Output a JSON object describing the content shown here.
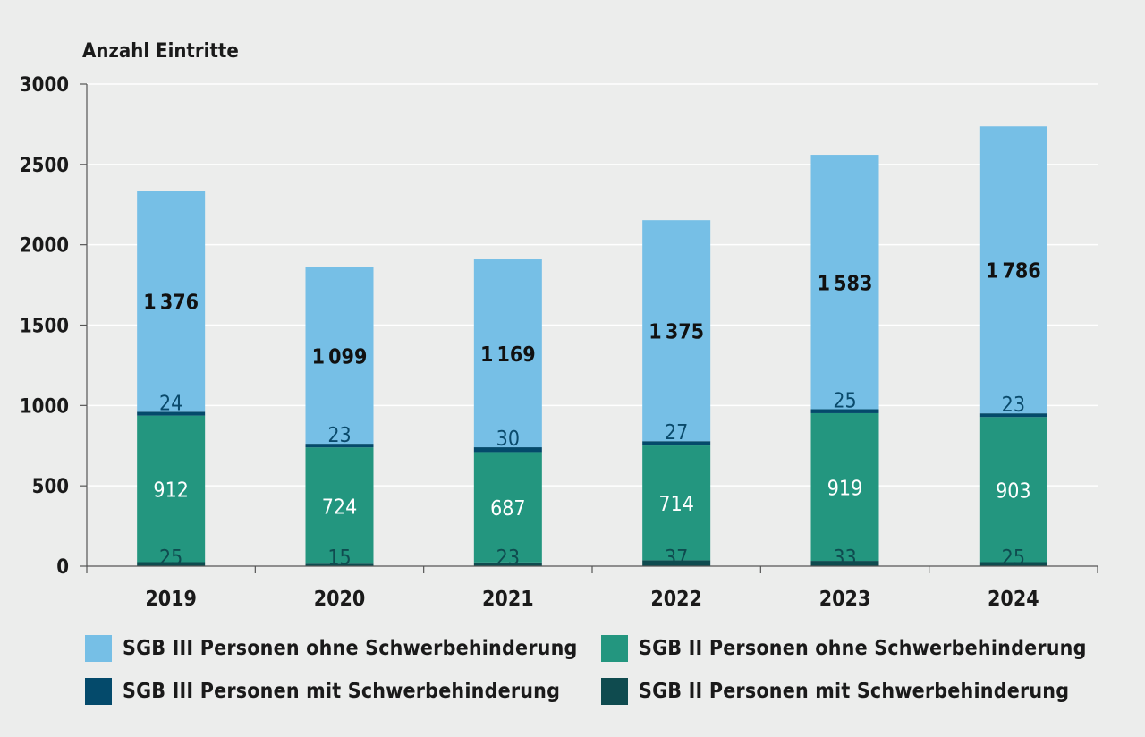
{
  "chart_data": {
    "type": "bar",
    "stacked": true,
    "y_axis_title": "Anzahl Eintritte",
    "categories": [
      "2019",
      "2020",
      "2021",
      "2022",
      "2023",
      "2024"
    ],
    "ylim": [
      0,
      3000
    ],
    "yticks": [
      0,
      500,
      1000,
      1500,
      2000,
      2500,
      3000
    ],
    "ytick_labels": [
      "0",
      "500",
      "1000",
      "1500",
      "2000",
      "2500",
      "3000"
    ],
    "grid": true,
    "legend_position": "bottom",
    "series": [
      {
        "name": "SGB II Personen mit Schwerbehinderung",
        "color": "#0f4b4f",
        "label_color": "#0f4b4f",
        "values": [
          25,
          15,
          23,
          37,
          33,
          25
        ]
      },
      {
        "name": "SGB II Personen ohne Schwerbehinderung",
        "color": "#23967f",
        "label_color": "#ffffff",
        "values": [
          912,
          724,
          687,
          714,
          919,
          903
        ]
      },
      {
        "name": "SGB III Personen mit Schwerbehinderung",
        "color": "#044a6b",
        "label_color": "#0a4a6b",
        "values": [
          24,
          23,
          30,
          27,
          25,
          23
        ]
      },
      {
        "name": "SGB III Personen ohne Schwerbehinderung",
        "color": "#76bfe6",
        "label_color": "#111111",
        "values": [
          1376,
          1099,
          1169,
          1375,
          1583,
          1786
        ]
      }
    ],
    "legend_order": [
      3,
      1,
      2,
      0
    ]
  }
}
